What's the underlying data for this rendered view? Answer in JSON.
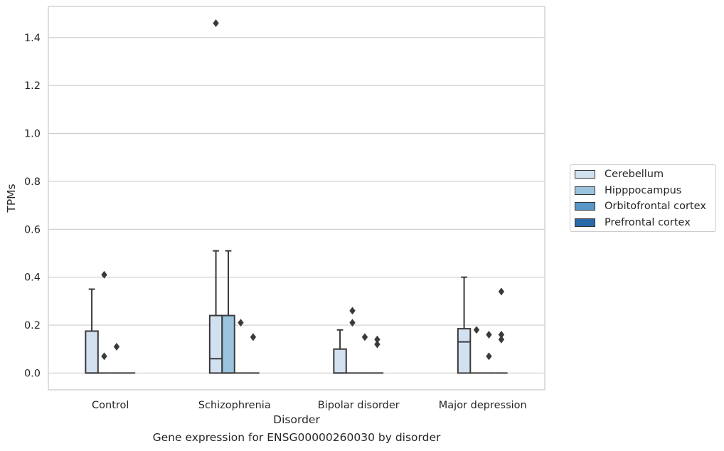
{
  "caption": "Gene expression for ENSG00000260030 by disorder",
  "chart_data": {
    "type": "box",
    "xlabel": "Disorder",
    "ylabel": "TPMs",
    "categories": [
      "Control",
      "Schizophrenia",
      "Bipolar disorder",
      "Major depression"
    ],
    "ylim": [
      -0.07,
      1.53
    ],
    "yticks": [
      0.0,
      0.2,
      0.4,
      0.6,
      0.8,
      1.0,
      1.2,
      1.4
    ],
    "ytick_labels": [
      "0.0",
      "0.2",
      "0.4",
      "0.6",
      "0.8",
      "1.0",
      "1.2",
      "1.4"
    ],
    "grid": true,
    "legend_position": "right",
    "series": [
      {
        "name": "Cerebellum",
        "color": "#d2e1f0",
        "boxes": [
          {
            "q1": 0.0,
            "median": 0.0,
            "q3": 0.175,
            "whisker_low": 0.0,
            "whisker_high": 0.35,
            "outliers": []
          },
          {
            "q1": 0.0,
            "median": 0.06,
            "q3": 0.24,
            "whisker_low": 0.0,
            "whisker_high": 0.51,
            "outliers": [
              1.46
            ]
          },
          {
            "q1": 0.0,
            "median": 0.0,
            "q3": 0.1,
            "whisker_low": 0.0,
            "whisker_high": 0.18,
            "outliers": []
          },
          {
            "q1": 0.0,
            "median": 0.13,
            "q3": 0.185,
            "whisker_low": 0.0,
            "whisker_high": 0.4,
            "outliers": []
          }
        ]
      },
      {
        "name": "Hipppocampus",
        "color": "#9ac4dd",
        "boxes": [
          {
            "q1": 0.0,
            "median": 0.0,
            "q3": 0.0,
            "whisker_low": 0.0,
            "whisker_high": 0.0,
            "outliers": [
              0.41,
              0.07
            ]
          },
          {
            "q1": 0.0,
            "median": 0.0,
            "q3": 0.24,
            "whisker_low": 0.0,
            "whisker_high": 0.51,
            "outliers": []
          },
          {
            "q1": 0.0,
            "median": 0.0,
            "q3": 0.0,
            "whisker_low": 0.0,
            "whisker_high": 0.0,
            "outliers": [
              0.26,
              0.21
            ]
          },
          {
            "q1": 0.0,
            "median": 0.0,
            "q3": 0.0,
            "whisker_low": 0.0,
            "whisker_high": 0.0,
            "outliers": [
              0.18
            ]
          }
        ]
      },
      {
        "name": "Orbitofrontal cortex",
        "color": "#5897c6",
        "boxes": [
          {
            "q1": 0.0,
            "median": 0.0,
            "q3": 0.0,
            "whisker_low": 0.0,
            "whisker_high": 0.0,
            "outliers": [
              0.11
            ]
          },
          {
            "q1": 0.0,
            "median": 0.0,
            "q3": 0.0,
            "whisker_low": 0.0,
            "whisker_high": 0.0,
            "outliers": [
              0.21
            ]
          },
          {
            "q1": 0.0,
            "median": 0.0,
            "q3": 0.0,
            "whisker_low": 0.0,
            "whisker_high": 0.0,
            "outliers": [
              0.15
            ]
          },
          {
            "q1": 0.0,
            "median": 0.0,
            "q3": 0.0,
            "whisker_low": 0.0,
            "whisker_high": 0.0,
            "outliers": [
              0.16,
              0.07
            ]
          }
        ]
      },
      {
        "name": "Prefrontal cortex",
        "color": "#2a69a8",
        "boxes": [
          {
            "q1": 0.0,
            "median": 0.0,
            "q3": 0.0,
            "whisker_low": 0.0,
            "whisker_high": 0.0,
            "outliers": []
          },
          {
            "q1": 0.0,
            "median": 0.0,
            "q3": 0.0,
            "whisker_low": 0.0,
            "whisker_high": 0.0,
            "outliers": [
              0.15
            ]
          },
          {
            "q1": 0.0,
            "median": 0.0,
            "q3": 0.0,
            "whisker_low": 0.0,
            "whisker_high": 0.0,
            "outliers": [
              0.14,
              0.12
            ]
          },
          {
            "q1": 0.0,
            "median": 0.0,
            "q3": 0.0,
            "whisker_low": 0.0,
            "whisker_high": 0.0,
            "outliers": [
              0.34,
              0.16,
              0.14
            ]
          }
        ]
      }
    ]
  }
}
